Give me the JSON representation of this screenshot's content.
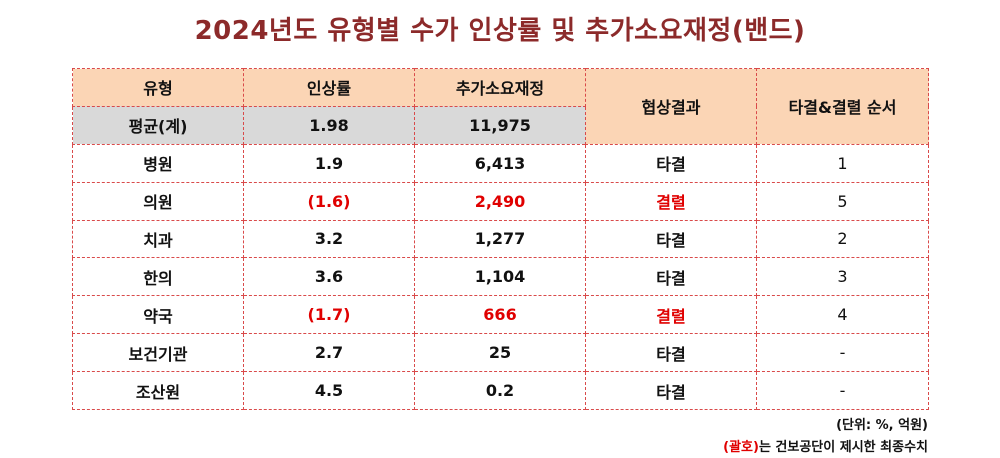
{
  "title": "2024년도 유형별 수가 인상률 및 추가소요재정(밴드)",
  "headers": {
    "type": "유형",
    "rate": "인상률",
    "budget": "추가소요재정",
    "result": "협상결과",
    "order": "타결&결렬 순서"
  },
  "average": {
    "label": "평균(계)",
    "rate": "1.98",
    "budget": "11,975"
  },
  "rows": [
    {
      "type": "병원",
      "rate": "1.9",
      "budget": "6,413",
      "result": "타결",
      "order": "1",
      "failed": false
    },
    {
      "type": "의원",
      "rate": "(1.6)",
      "budget": "2,490",
      "result": "결렬",
      "order": "5",
      "failed": true
    },
    {
      "type": "치과",
      "rate": "3.2",
      "budget": "1,277",
      "result": "타결",
      "order": "2",
      "failed": false
    },
    {
      "type": "한의",
      "rate": "3.6",
      "budget": "1,104",
      "result": "타결",
      "order": "3",
      "failed": false
    },
    {
      "type": "약국",
      "rate": "(1.7)",
      "budget": "666",
      "result": "결렬",
      "order": "4",
      "failed": true
    },
    {
      "type": "보건기관",
      "rate": "2.7",
      "budget": "25",
      "result": "타결",
      "order": "-",
      "failed": false
    },
    {
      "type": "조산원",
      "rate": "4.5",
      "budget": "0.2",
      "result": "타결",
      "order": "-",
      "failed": false
    }
  ],
  "notes": {
    "unit": "(단위: %, 억원)",
    "bracket_word": "(괄호)",
    "bracket_rest": "는 건보공단이 제시한 최종수치"
  },
  "colors": {
    "title": "#8c2a2a",
    "header_bg": "#fbd5b5",
    "avg_bg": "#d9d9d9",
    "failed": "#e00000",
    "border": "#d94a4a"
  }
}
